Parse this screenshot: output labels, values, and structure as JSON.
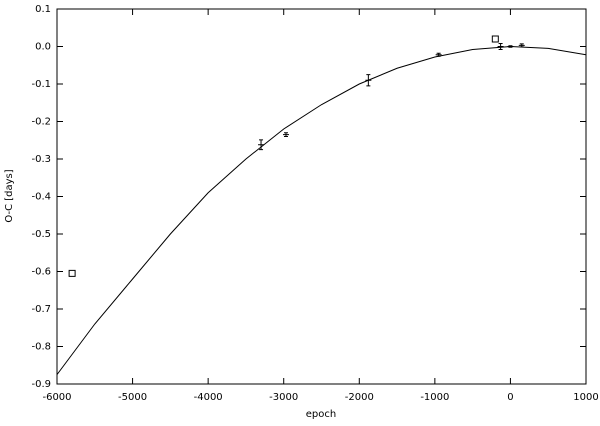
{
  "chart_data": {
    "type": "scatter",
    "x_label": "epoch",
    "y_label": "O-C [days]",
    "xlim": [
      -6000,
      1000
    ],
    "xticks": [
      -6000,
      -5000,
      -4000,
      -3000,
      -2000,
      -1000,
      0,
      1000
    ],
    "ylim": [
      -0.9,
      0.1
    ],
    "yticks": [
      0.1,
      {
        "value": 0,
        "label": "0.0"
      },
      -0.1,
      -0.2,
      -0.3,
      -0.4,
      -0.5,
      -0.6,
      -0.7,
      -0.8,
      -0.9
    ],
    "series": [
      {
        "style": "line",
        "color": "#000000",
        "x": [
          -6000,
          -5500,
          -5000,
          -4500,
          -4000,
          -3500,
          -3000,
          -2500,
          -2000,
          -1500,
          -1000,
          -500,
          0,
          500,
          1000
        ],
        "values": [
          -0.875,
          -0.74,
          -0.62,
          -0.5,
          -0.39,
          -0.3,
          -0.22,
          -0.155,
          -0.1,
          -0.058,
          -0.028,
          -0.008,
          0.0,
          -0.005,
          -0.022
        ]
      },
      {
        "style": "errorbar",
        "color": "#000000",
        "x": [
          -3300,
          -2970,
          -1880,
          -950,
          -130,
          0,
          150
        ],
        "values": [
          -0.262,
          -0.235,
          -0.09,
          -0.022,
          0.0,
          0.0,
          0.003
        ],
        "errors": [
          0.013,
          0.005,
          0.015,
          0.004,
          0.008,
          0.002,
          0.004
        ]
      },
      {
        "style": "square",
        "color": "#000000",
        "x": [
          -5800,
          -200
        ],
        "values": [
          -0.605,
          0.02
        ]
      }
    ]
  }
}
